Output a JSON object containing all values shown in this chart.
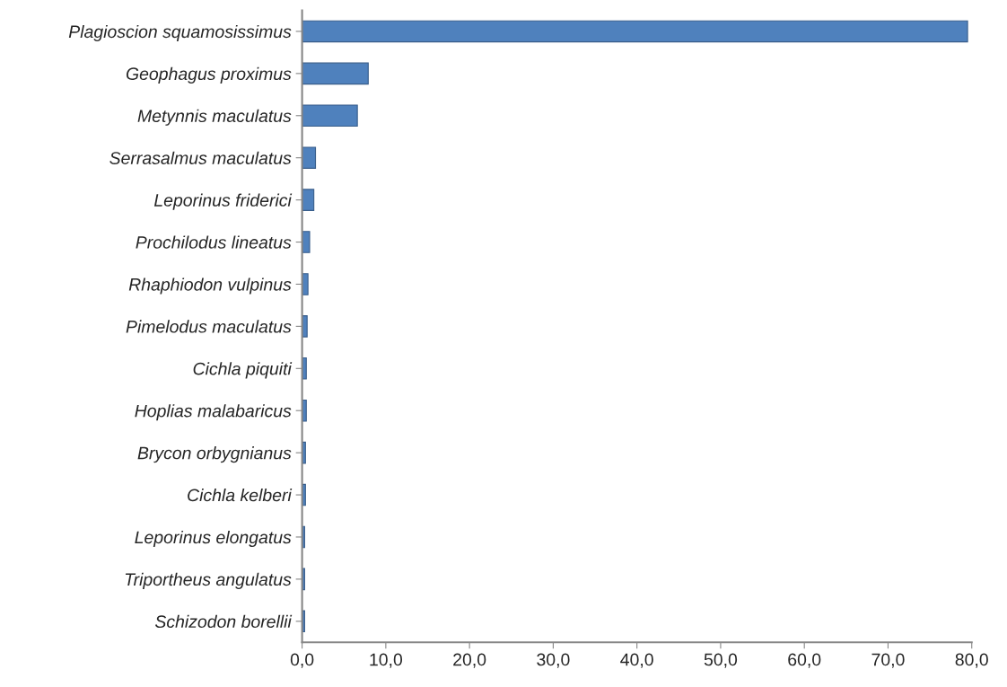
{
  "chart_data": {
    "type": "bar",
    "orientation": "horizontal",
    "categories": [
      "Plagioscion squamosissimus",
      "Geophagus proximus",
      "Metynnis maculatus",
      "Serrasalmus maculatus",
      "Leporinus friderici",
      "Prochilodus lineatus",
      "Rhaphiodon vulpinus",
      "Pimelodus maculatus",
      "Cichla piquiti",
      "Hoplias malabaricus",
      "Brycon orbygnianus",
      "Cichla kelberi",
      "Leporinus elongatus",
      "Triportheus angulatus",
      "Schizodon borellii"
    ],
    "values": [
      79.5,
      7.9,
      6.6,
      1.6,
      1.4,
      0.9,
      0.7,
      0.6,
      0.5,
      0.5,
      0.4,
      0.4,
      0.3,
      0.3,
      0.3
    ],
    "color": "#4f81bd",
    "xlim": [
      0,
      80
    ],
    "xticks": [
      {
        "value": 0,
        "label": "0,0"
      },
      {
        "value": 10,
        "label": "10,0"
      },
      {
        "value": 20,
        "label": "20,0"
      },
      {
        "value": 30,
        "label": "30,0"
      },
      {
        "value": 40,
        "label": "40,0"
      },
      {
        "value": 50,
        "label": "50,0"
      },
      {
        "value": 60,
        "label": "60,0"
      },
      {
        "value": 70,
        "label": "70,0"
      },
      {
        "value": 80,
        "label": "80,0"
      }
    ],
    "grid": false
  }
}
